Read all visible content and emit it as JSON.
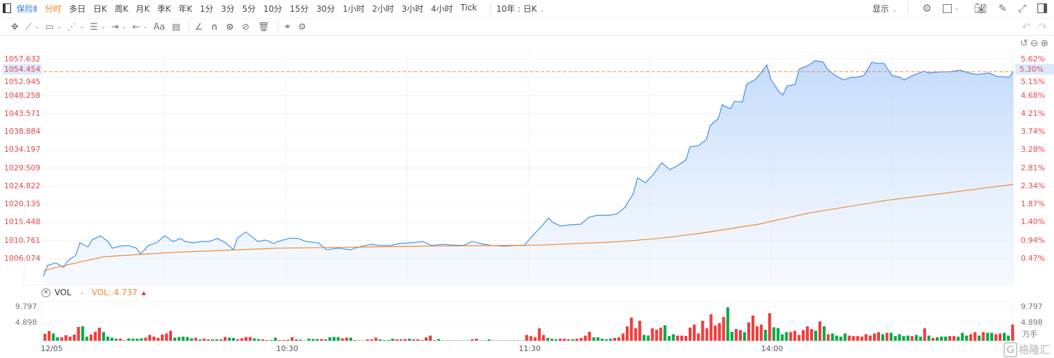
{
  "toolbar": {
    "symbol": "保险Ⅱ",
    "periods": [
      "分时",
      "多日",
      "日K",
      "周K",
      "月K",
      "季K",
      "年K",
      "1分",
      "3分",
      "5分",
      "10分",
      "15分",
      "30分",
      "1小时",
      "2小时",
      "3小时",
      "4小时",
      "Tick"
    ],
    "active_period": "分时",
    "range": "10年 : 日K",
    "display": "显示",
    "undo": "↶",
    "redo": "↷"
  },
  "chart_data": {
    "type": "line",
    "title": "保险Ⅱ 分时",
    "x_unit": "trading minutes since 09:30",
    "x_ticks": [
      {
        "m": 0,
        "label": "12/05"
      },
      {
        "m": 60,
        "label": "10:30"
      },
      {
        "m": 120,
        "label": "11:30"
      },
      {
        "m": 180,
        "label": "14:00"
      }
    ],
    "y_ticks": [
      "1057.632",
      "1052.945",
      "1048.258",
      "1043.571",
      "1038.884",
      "1034.197",
      "1029.509",
      "1024.822",
      "1020.135",
      "1015.448",
      "1010.761",
      "1006.074"
    ],
    "pct_ticks": [
      "5.62%",
      "5.15%",
      "4.68%",
      "4.21%",
      "3.74%",
      "3.28%",
      "2.81%",
      "2.34%",
      "1.87%",
      "1.40%",
      "0.94%",
      "0.47%"
    ],
    "ylim": [
      1001.4,
      1057.632
    ],
    "current": {
      "price": "1054.454",
      "pct": "5.30%"
    },
    "price": {
      "m": [
        0,
        1,
        3,
        5,
        6,
        8,
        9,
        11,
        12,
        14,
        16,
        17,
        19,
        21,
        23,
        24,
        26,
        28,
        30,
        32,
        34,
        35,
        37,
        39,
        41,
        43,
        45,
        47,
        48,
        50,
        52,
        53,
        55,
        57,
        58,
        61,
        63,
        65,
        68,
        70,
        73,
        76,
        78,
        81,
        83,
        86,
        88,
        91,
        94,
        96,
        99,
        101,
        104,
        106,
        109,
        111,
        114,
        117,
        119,
        121,
        123,
        125,
        126,
        128,
        130,
        133,
        135,
        137,
        140,
        142,
        144,
        146,
        147,
        149,
        151,
        153,
        155,
        157,
        159,
        160,
        162,
        164,
        165,
        167,
        168,
        170,
        171,
        173,
        174,
        176,
        177,
        179,
        180,
        182,
        183,
        184,
        186,
        187,
        189,
        191,
        193,
        194,
        196,
        198,
        200,
        201,
        203,
        205,
        206,
        208,
        210,
        212,
        213,
        215,
        218,
        219,
        222,
        224,
        227,
        229,
        231,
        234,
        236,
        239,
        240
      ],
      "v": [
        1001.6,
        1004.3,
        1005.0,
        1003.8,
        1005.5,
        1007.0,
        1010.2,
        1009.1,
        1010.9,
        1012.0,
        1010.5,
        1008.8,
        1009.3,
        1009.5,
        1008.8,
        1007.3,
        1009.5,
        1010.2,
        1012.0,
        1010.5,
        1011.3,
        1010.5,
        1010.2,
        1010.5,
        1010.5,
        1011.3,
        1010.2,
        1008.4,
        1011.4,
        1013.0,
        1011.4,
        1010.5,
        1010.9,
        1010.0,
        1010.5,
        1011.4,
        1011.3,
        1010.5,
        1010.2,
        1008.4,
        1008.8,
        1008.4,
        1009.1,
        1009.8,
        1009.5,
        1009.5,
        1010.0,
        1010.2,
        1010.5,
        1009.5,
        1009.8,
        1009.6,
        1009.5,
        1010.5,
        1009.8,
        1009.5,
        1009.3,
        1009.5,
        1009.5,
        1012.0,
        1014.1,
        1016.6,
        1015.5,
        1014.5,
        1014.8,
        1015.0,
        1016.8,
        1017.3,
        1017.3,
        1017.7,
        1019.5,
        1023.0,
        1027.0,
        1025.7,
        1028.0,
        1030.9,
        1029.1,
        1030.2,
        1031.6,
        1035.0,
        1035.3,
        1036.8,
        1040.5,
        1042.3,
        1045.9,
        1044.8,
        1046.8,
        1046.6,
        1051.2,
        1052.3,
        1053.4,
        1056.2,
        1052.5,
        1049.3,
        1048.4,
        1050.7,
        1051.2,
        1055.1,
        1055.9,
        1057.3,
        1056.9,
        1055.1,
        1053.4,
        1052.3,
        1053.0,
        1053.0,
        1053.4,
        1056.9,
        1056.6,
        1056.6,
        1053.4,
        1053.0,
        1052.3,
        1053.4,
        1054.6,
        1054.1,
        1054.4,
        1054.4,
        1054.8,
        1054.1,
        1053.7,
        1054.1,
        1053.2,
        1053.0,
        1054.4
      ]
    },
    "avg": {
      "m": [
        0,
        3,
        15,
        32,
        58,
        94,
        123,
        143,
        153,
        163,
        177,
        190,
        209,
        223,
        240
      ],
      "v": [
        1002.9,
        1003.8,
        1006.6,
        1007.7,
        1008.8,
        1009.3,
        1009.6,
        1010.5,
        1011.4,
        1012.7,
        1015.0,
        1018.0,
        1021.2,
        1023.0,
        1025.3
      ]
    },
    "colors": {
      "price": "#3b8ef0",
      "avg": "#f5862d",
      "up": "#f23c3c",
      "down": "#0aa846",
      "axis_text": "#e5484d"
    }
  },
  "volume": {
    "label": "VOL",
    "value_label": "VOL: 4.737",
    "ticks": [
      "9.797",
      "4.898"
    ],
    "unit": "万手",
    "max": 9.797,
    "values": [
      2.0,
      2.8,
      2.1,
      1.0,
      1.0,
      1.6,
      1.2,
      1.8,
      4.0,
      4.2,
      1.2,
      1.8,
      2.6,
      3.8,
      2.5,
      1.2,
      0.9,
      0.6,
      0.6,
      0.2,
      0.7,
      0.6,
      0.6,
      0.7,
      0.9,
      1.7,
      1.2,
      0.8,
      1.8,
      2.1,
      2.9,
      0.9,
      1.1,
      1.2,
      1.1,
      0.7,
      0.9,
      0.4,
      0.6,
      0.4,
      0.4,
      0.4,
      0.4,
      1.1,
      0.9,
      0.8,
      0.4,
      0.7,
      1.1,
      1.1,
      0.7,
      0.5,
      0.4,
      0.2,
      0.2,
      0.9,
      0.2,
      0.2,
      0.3,
      1.0,
      0.4,
      0.3,
      0.1,
      0.6,
      0.5,
      0.5,
      0.5,
      0.4,
      1.0,
      1.1,
      1.1,
      0.7,
      0.9,
      0.9,
      0.2,
      0.1,
      0.1,
      0.4,
      0.4,
      0.9,
      0.4,
      0.2,
      0.2,
      0.6,
      0.4,
      0.4,
      0.5,
      0.6,
      0.4,
      0.4,
      0.2,
      1.0,
      1.5,
      0.2,
      0.5,
      0.1,
      0.1,
      0.1,
      0.1,
      0.1,
      0.1,
      0.1,
      0.4,
      0.6,
      0.1,
      0.1,
      0.4,
      0.1,
      0.1,
      0.1,
      0.1,
      0.1,
      0.1,
      0.1,
      0.1,
      1.7,
      1.35,
      1.0,
      3.6,
      1.7,
      0.8,
      0.6,
      0.4,
      0.6,
      0.6,
      0.4,
      0.4,
      0.6,
      0.8,
      1.5,
      2.6,
      1.0,
      1.0,
      0.6,
      0.4,
      0.6,
      0.8,
      1.0,
      2.1,
      4.2,
      6.7,
      3.6,
      5.8,
      1.7,
      1.5,
      3.6,
      3.2,
      3.8,
      4.5,
      1.35,
      1.9,
      1.5,
      1.5,
      1.35,
      3.8,
      4.7,
      2.1,
      5.8,
      3.6,
      7.7,
      4.4,
      5.1,
      6.9,
      9.7,
      2.6,
      3.4,
      3.1,
      2.5,
      5.3,
      7.3,
      4.2,
      4.7,
      3.2,
      8.0,
      3.9,
      3.7,
      1.9,
      2.5,
      2.5,
      2.9,
      1.7,
      3.1,
      4.2,
      3.4,
      2.9,
      5.6,
      4.2,
      1.9,
      2.1,
      1.5,
      1.2,
      2.1,
      1.5,
      1.35,
      1.35,
      1.2,
      1.9,
      1.5,
      2.1,
      2.5,
      1.9,
      2.3,
      2.3,
      1.35,
      1.9,
      1.35,
      1.5,
      1.35,
      1.7,
      1.2,
      3.6,
      1.5,
      0.8,
      1.0,
      1.2,
      1.2,
      1.35,
      1.35,
      1.2,
      2.3,
      1.5,
      1.9,
      2.5,
      1.5,
      2.5,
      2.3,
      2.3,
      1.9,
      2.1,
      2.3,
      1.5,
      4.7
    ],
    "dirs": "rrggrrrrrggrrrggggrrggggrrrrrrrgggggrgrrggrrggrrrrggrrggrrrrrgggggrggggrrggrgrrrggggrrrgrrgrrggrrrggggrrgggrggrggrrrrrrrgggrrrgrrrrgggggrrrrrrrggrrrgggrrrrrrrrrrrrggrrgrrrrgrggggrrrrrrgrgrggggrrrrrrrrgrgggggrggrgrgggrrgggrrgrggrrggr"
  },
  "watermark": "格隆汇"
}
